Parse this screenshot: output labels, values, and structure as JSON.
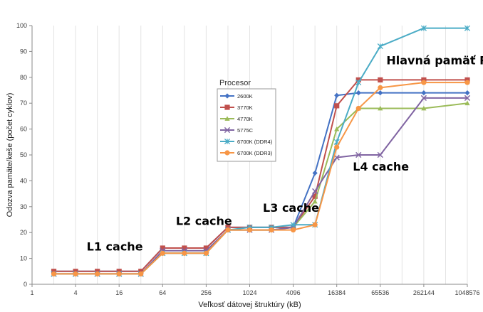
{
  "chart_data": {
    "type": "line",
    "xscale": "log2",
    "x": [
      2,
      4,
      8,
      16,
      32,
      64,
      128,
      256,
      512,
      1024,
      2048,
      4096,
      8192,
      16384,
      32768,
      65536,
      262144,
      1048576
    ],
    "x_ticks": [
      1,
      4,
      16,
      64,
      256,
      1024,
      4096,
      16384,
      65536,
      262144,
      1048576
    ],
    "xlabel": "Veľkosť dátovej štruktúry (kB)",
    "ylabel": "Odozva pamäte/keše (počet cyklov)",
    "ylim": [
      0,
      100
    ],
    "y_ticks": [
      0,
      10,
      20,
      30,
      40,
      50,
      60,
      70,
      80,
      90,
      100
    ],
    "grid": "vertical",
    "legend_title": "Procesor",
    "legend_position": "center",
    "series": [
      {
        "name": "2600K",
        "color": "#4472C4",
        "marker": "diamond",
        "values": [
          5,
          5,
          5,
          5,
          5,
          14,
          14,
          14,
          22,
          22,
          22,
          22,
          43,
          73,
          74,
          74,
          74,
          74
        ]
      },
      {
        "name": "3770K",
        "color": "#C0504D",
        "marker": "square",
        "values": [
          5,
          5,
          5,
          5,
          5,
          14,
          14,
          14,
          22,
          22,
          22,
          22,
          34,
          69,
          79,
          79,
          79,
          79
        ]
      },
      {
        "name": "4770K",
        "color": "#9BBB59",
        "marker": "triangle",
        "values": [
          4,
          4,
          4,
          4,
          4,
          12,
          12,
          12,
          21,
          21,
          21,
          22,
          32,
          60,
          68,
          68,
          68,
          70
        ]
      },
      {
        "name": "5775C",
        "color": "#8064A2",
        "marker": "x",
        "values": [
          4,
          4,
          4,
          4,
          4,
          13,
          13,
          13,
          21,
          21,
          21,
          22,
          36,
          49,
          50,
          50,
          72,
          72
        ]
      },
      {
        "name": "6700K (DDR4)",
        "color": "#4BACC6",
        "marker": "star",
        "values": [
          4,
          4,
          4,
          4,
          4,
          12,
          12,
          12,
          21,
          22,
          22,
          23,
          23,
          55,
          78,
          92,
          99,
          99
        ]
      },
      {
        "name": "6700K (DDR3)",
        "color": "#F79646",
        "marker": "circle",
        "values": [
          4,
          4,
          4,
          4,
          4,
          12,
          12,
          12,
          21,
          21,
          21,
          21,
          23,
          53,
          68,
          76,
          78,
          78
        ]
      }
    ],
    "annotations": [
      {
        "text": "L1 cache",
        "x": 8,
        "y": 13
      },
      {
        "text": "L2 cache",
        "x": 128,
        "y": 23
      },
      {
        "text": "L3 cache",
        "x": 2048,
        "y": 28
      },
      {
        "text": "L4 cache",
        "x": 32768,
        "y": 44
      },
      {
        "text": "Hlavná pamäť RAM",
        "x": 131072,
        "y": 85
      }
    ]
  }
}
